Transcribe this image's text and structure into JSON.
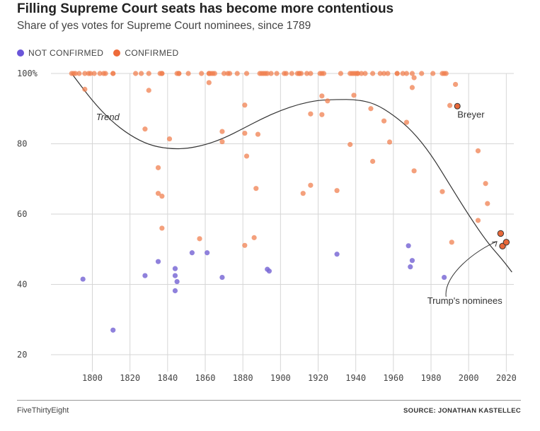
{
  "header": {
    "title": "Filling Supreme Court seats has become more contentious",
    "subtitle": "Share of yes votes for Supreme Court nominees, since 1789"
  },
  "legend": {
    "not_confirmed_label": "NOT CONFIRMED",
    "confirmed_label": "CONFIRMED"
  },
  "footer": {
    "brand": "FiveThirtyEight",
    "source": "SOURCE: JONATHAN KASTELLEC"
  },
  "colors": {
    "not_confirmed": "#7b6bd6",
    "confirmed": "#f08050",
    "highlight": "#e8683a",
    "trend": "#333333",
    "grid": "#d6d6d6"
  },
  "chart_data": {
    "type": "scatter",
    "title": "Filling Supreme Court seats has become more contentious",
    "subtitle": "Share of yes votes for Supreme Court nominees, since 1789",
    "xlim": [
      1778,
      2024
    ],
    "ylim": [
      18,
      100
    ],
    "x_ticks": [
      1800,
      1820,
      1840,
      1860,
      1880,
      1900,
      1920,
      1940,
      1960,
      1980,
      2000,
      2020
    ],
    "y_ticks": [
      20,
      40,
      60,
      80,
      100
    ],
    "y_tick_labels": [
      "20",
      "40",
      "60",
      "80",
      "100%"
    ],
    "grid": true,
    "legend_position": "top-left",
    "series": [
      {
        "name": "NOT CONFIRMED",
        "points": [
          [
            1795,
            41.5
          ],
          [
            1811,
            27
          ],
          [
            1828,
            42.5
          ],
          [
            1835,
            46.5
          ],
          [
            1844,
            44.5
          ],
          [
            1844,
            42.5
          ],
          [
            1845,
            40.8
          ],
          [
            1844,
            38.2
          ],
          [
            1853,
            49
          ],
          [
            1861,
            49
          ],
          [
            1869,
            42
          ],
          [
            1893,
            44.3
          ],
          [
            1894,
            43.8
          ],
          [
            1930,
            48.6
          ],
          [
            1968,
            51
          ],
          [
            1969,
            45
          ],
          [
            1970,
            46.8
          ],
          [
            1987,
            42
          ]
        ]
      },
      {
        "name": "CONFIRMED",
        "points": [
          [
            1789,
            100
          ],
          [
            1790,
            100
          ],
          [
            1791,
            100
          ],
          [
            1793,
            100
          ],
          [
            1796,
            100
          ],
          [
            1798,
            100
          ],
          [
            1799,
            100
          ],
          [
            1801,
            100
          ],
          [
            1804,
            100
          ],
          [
            1806,
            100
          ],
          [
            1807,
            100
          ],
          [
            1811,
            100
          ],
          [
            1811,
            100
          ],
          [
            1823,
            100
          ],
          [
            1826,
            100
          ],
          [
            1830,
            100
          ],
          [
            1836,
            100
          ],
          [
            1837,
            100
          ],
          [
            1837,
            100
          ],
          [
            1845,
            100
          ],
          [
            1846,
            100
          ],
          [
            1846,
            100
          ],
          [
            1851,
            100
          ],
          [
            1858,
            100
          ],
          [
            1862,
            100
          ],
          [
            1862,
            100
          ],
          [
            1863,
            100
          ],
          [
            1864,
            100
          ],
          [
            1865,
            100
          ],
          [
            1870,
            100
          ],
          [
            1872,
            100
          ],
          [
            1873,
            100
          ],
          [
            1877,
            100
          ],
          [
            1882,
            100
          ],
          [
            1889,
            100
          ],
          [
            1890,
            100
          ],
          [
            1891,
            100
          ],
          [
            1892,
            100
          ],
          [
            1893,
            100
          ],
          [
            1895,
            100
          ],
          [
            1898,
            100
          ],
          [
            1902,
            100
          ],
          [
            1903,
            100
          ],
          [
            1906,
            100
          ],
          [
            1909,
            100
          ],
          [
            1910,
            100
          ],
          [
            1910,
            100
          ],
          [
            1911,
            100
          ],
          [
            1914,
            100
          ],
          [
            1916,
            100
          ],
          [
            1921,
            100
          ],
          [
            1922,
            100
          ],
          [
            1923,
            100
          ],
          [
            1932,
            100
          ],
          [
            1937,
            100
          ],
          [
            1938,
            100
          ],
          [
            1939,
            100
          ],
          [
            1940,
            100
          ],
          [
            1941,
            100
          ],
          [
            1941,
            100
          ],
          [
            1943,
            100
          ],
          [
            1945,
            100
          ],
          [
            1949,
            100
          ],
          [
            1953,
            100
          ],
          [
            1955,
            100
          ],
          [
            1957,
            100
          ],
          [
            1962,
            100
          ],
          [
            1962,
            100
          ],
          [
            1965,
            100
          ],
          [
            1967,
            100
          ],
          [
            1970,
            100
          ],
          [
            1975,
            100
          ],
          [
            1981,
            100
          ],
          [
            1986,
            100
          ],
          [
            1987,
            100
          ],
          [
            1988,
            100
          ],
          [
            1796,
            95.5
          ],
          [
            1830,
            95.2
          ],
          [
            1862,
            97.4
          ],
          [
            1922,
            93.6
          ],
          [
            1925,
            92.2
          ],
          [
            1939,
            93.8
          ],
          [
            1970,
            96
          ],
          [
            1990,
            90.9
          ],
          [
            1993,
            96.9
          ],
          [
            1948,
            90
          ],
          [
            1955,
            86.5
          ],
          [
            1967,
            86.1
          ],
          [
            1916,
            88.5
          ],
          [
            1922,
            88.3
          ],
          [
            1881,
            91
          ],
          [
            1828,
            84.2
          ],
          [
            1869,
            83.5
          ],
          [
            1881,
            83
          ],
          [
            1888,
            82.7
          ],
          [
            1841,
            81.4
          ],
          [
            1869,
            80.6
          ],
          [
            1937,
            79.8
          ],
          [
            1958,
            80.5
          ],
          [
            1971,
            98.8
          ],
          [
            1882,
            76.5
          ],
          [
            1949,
            75
          ],
          [
            1835,
            73.2
          ],
          [
            1971,
            72.3
          ],
          [
            2005,
            78
          ],
          [
            2009,
            68.7
          ],
          [
            1887,
            67.3
          ],
          [
            1916,
            68.2
          ],
          [
            1912,
            65.9
          ],
          [
            1930,
            66.7
          ],
          [
            1986,
            66.4
          ],
          [
            1835,
            65.9
          ],
          [
            1837,
            65.1
          ],
          [
            2010,
            63
          ],
          [
            1837,
            56
          ],
          [
            1857,
            53
          ],
          [
            1886,
            53.3
          ],
          [
            1881,
            51.1
          ],
          [
            2005,
            58.2
          ],
          [
            1991,
            52
          ]
        ]
      },
      {
        "name": "Breyer",
        "points": [
          [
            1994,
            90.7
          ]
        ]
      },
      {
        "name": "Trump's nominees",
        "points": [
          [
            2017,
            54.5
          ],
          [
            2018,
            50.9
          ],
          [
            2020,
            52
          ]
        ]
      }
    ],
    "trend": {
      "label": "Trend",
      "points": [
        [
          1789,
          100
        ],
        [
          1800,
          92.2
        ],
        [
          1810,
          86.5
        ],
        [
          1820,
          82.4
        ],
        [
          1830,
          79.7
        ],
        [
          1840,
          78.6
        ],
        [
          1850,
          78.6
        ],
        [
          1860,
          79.7
        ],
        [
          1870,
          81.6
        ],
        [
          1880,
          84.3
        ],
        [
          1890,
          87.1
        ],
        [
          1900,
          89.5
        ],
        [
          1910,
          91.3
        ],
        [
          1920,
          92.4
        ],
        [
          1930,
          92.6
        ],
        [
          1940,
          92.6
        ],
        [
          1950,
          91.5
        ],
        [
          1960,
          88.2
        ],
        [
          1970,
          83.7
        ],
        [
          1980,
          77
        ],
        [
          1990,
          68.3
        ],
        [
          2000,
          59.7
        ],
        [
          2010,
          51.9
        ],
        [
          2018,
          47
        ],
        [
          2023,
          43.5
        ]
      ]
    },
    "annotations": [
      {
        "text": "Trend",
        "x": 1802,
        "y": 86.7
      },
      {
        "text": "Breyer",
        "x": 1994,
        "y": 87.4
      },
      {
        "text": "Trump's nominees",
        "x": 1978,
        "y": 34.5
      }
    ]
  }
}
